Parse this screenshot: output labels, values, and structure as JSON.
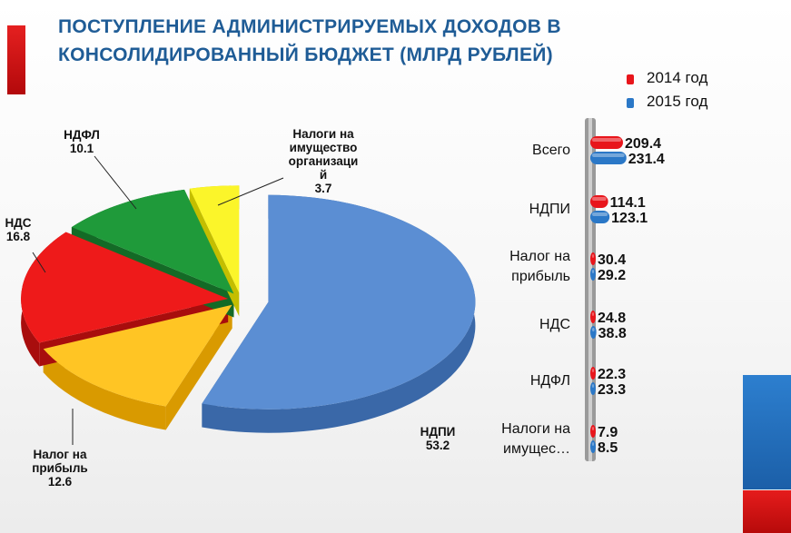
{
  "title": {
    "line1": "ПОСТУПЛЕНИЕ АДМИНИСТРИРУЕМЫХ ДОХОДОВ В",
    "line2": "КОНСОЛИДИРОВАННЫЙ БЮДЖЕТ (МЛРД РУБЛЕЙ)"
  },
  "legend": [
    {
      "label": "2014 год",
      "color": "#e8151b"
    },
    {
      "label": "2015 год",
      "color": "#2b78c7"
    }
  ],
  "chart_data": [
    {
      "type": "pie",
      "slices": [
        {
          "name": "НДПИ",
          "value": 53.2,
          "label_lines": [
            "НДПИ"
          ],
          "value_text": "53.2",
          "color": "#5b8ed3",
          "dark": "#3a68a8"
        },
        {
          "name": "Налог на прибыль",
          "value": 12.6,
          "label_lines": [
            "Налог на",
            "прибыль"
          ],
          "value_text": "12.6",
          "color": "#ffc524",
          "dark": "#d99a00"
        },
        {
          "name": "НДС",
          "value": 16.8,
          "label_lines": [
            "НДС"
          ],
          "value_text": "16.8",
          "color": "#ee1a1a",
          "dark": "#a80d0d"
        },
        {
          "name": "НДФЛ",
          "value": 10.1,
          "label_lines": [
            "НДФЛ"
          ],
          "value_text": "10.1",
          "color": "#1f9a3a",
          "dark": "#146a26"
        },
        {
          "name": "Налоги на имущество организаций",
          "value": 3.7,
          "label_lines": [
            "Налоги на",
            "имущество",
            "организаци",
            "й"
          ],
          "value_text": "3.7",
          "color": "#fbf52a",
          "dark": "#c4be00"
        }
      ]
    },
    {
      "type": "bar",
      "orientation": "horizontal",
      "categories": [
        {
          "lines": [
            "Всего"
          ]
        },
        {
          "lines": [
            "НДПИ"
          ]
        },
        {
          "lines": [
            "Налог на",
            "прибыль"
          ]
        },
        {
          "lines": [
            "НДС"
          ]
        },
        {
          "lines": [
            "НДФЛ"
          ]
        },
        {
          "lines": [
            "Налоги на",
            "имущес…"
          ]
        }
      ],
      "series": [
        {
          "name": "2014 год",
          "color": "#e8151b",
          "values": [
            209.4,
            114.1,
            30.4,
            24.8,
            22.3,
            7.9
          ],
          "labels": [
            "209.4",
            "114.1",
            "30.4",
            "24.8",
            "22.3",
            "7.9"
          ]
        },
        {
          "name": "2015 год",
          "color": "#2b78c7",
          "values": [
            231.4,
            123.1,
            29.2,
            38.8,
            23.3,
            8.5
          ],
          "labels": [
            "231.4",
            "123.1",
            "29.2",
            "38.8",
            "23.3",
            "8.5"
          ]
        }
      ]
    }
  ]
}
